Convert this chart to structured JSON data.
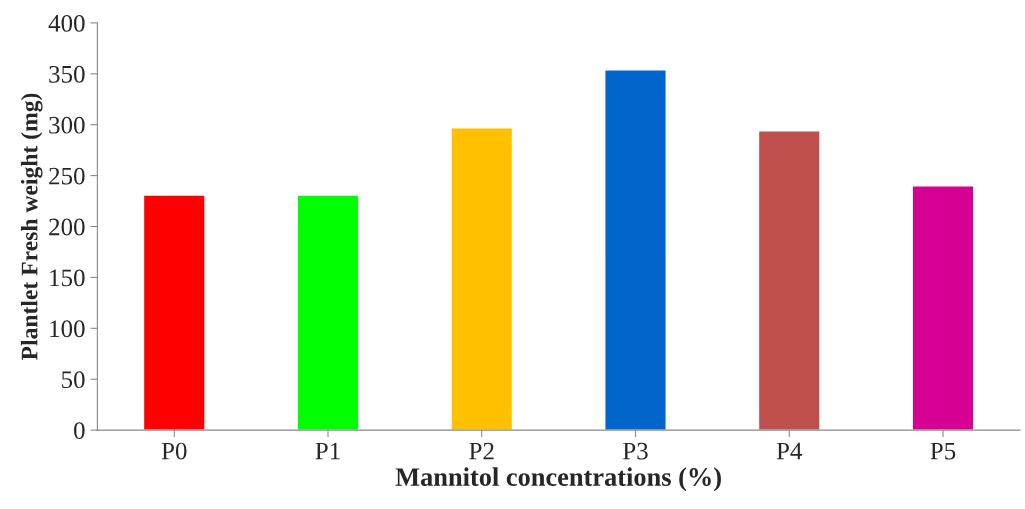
{
  "chart_data": {
    "type": "bar",
    "xlabel": "Mannitol concentrations (%)",
    "ylabel": "Plantlet Fresh weight (mg)",
    "categories": [
      "P0",
      "P1",
      "P2",
      "P3",
      "P4",
      "P5"
    ],
    "values": [
      231,
      231,
      297,
      354,
      294,
      240
    ],
    "colors": [
      "#ff0000",
      "#00ff00",
      "#ffc000",
      "#0066cc",
      "#c0504d",
      "#d60093"
    ],
    "ylim": [
      0,
      400
    ],
    "yticks": [
      0,
      50,
      100,
      150,
      200,
      250,
      300,
      350,
      400
    ],
    "grid": false
  }
}
